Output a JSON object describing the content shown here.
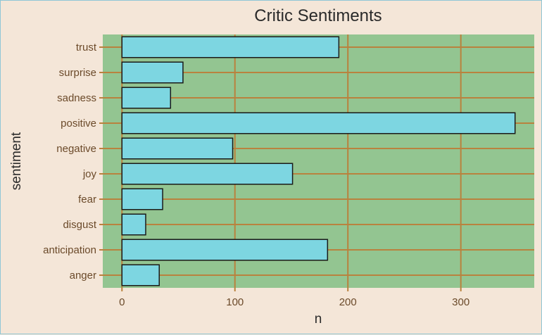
{
  "chart_data": {
    "type": "bar",
    "orientation": "horizontal",
    "title": "Critic Sentiments",
    "xlabel": "n",
    "ylabel": "sentiment",
    "categories": [
      "anger",
      "anticipation",
      "disgust",
      "fear",
      "joy",
      "negative",
      "positive",
      "sadness",
      "surprise",
      "trust"
    ],
    "values": [
      33,
      182,
      21,
      36,
      151,
      98,
      348,
      43,
      54,
      192
    ],
    "xlim": [
      -17,
      365
    ],
    "xticks": [
      0,
      100,
      200,
      300
    ],
    "grid": true,
    "legend": "none"
  },
  "colors": {
    "background": "#f4e6d8",
    "panel": "#93c591",
    "grid": "#b9823e",
    "bar_fill": "#7dd6e1",
    "bar_stroke": "#1a1a1a",
    "tick_text": "#6b4a2a",
    "title_text": "#2a2a2a"
  }
}
